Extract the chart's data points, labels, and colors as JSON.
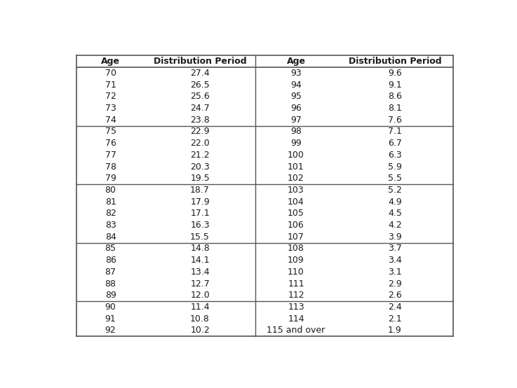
{
  "col_headers": [
    "Age",
    "Distribution Period",
    "Age",
    "Distribution Period"
  ],
  "groups": [
    {
      "left": [
        [
          "70",
          "27.4"
        ],
        [
          "71",
          "26.5"
        ],
        [
          "72",
          "25.6"
        ],
        [
          "73",
          "24.7"
        ],
        [
          "74",
          "23.8"
        ]
      ],
      "right": [
        [
          "93",
          "9.6"
        ],
        [
          "94",
          "9.1"
        ],
        [
          "95",
          "8.6"
        ],
        [
          "96",
          "8.1"
        ],
        [
          "97",
          "7.6"
        ]
      ]
    },
    {
      "left": [
        [
          "75",
          "22.9"
        ],
        [
          "76",
          "22.0"
        ],
        [
          "77",
          "21.2"
        ],
        [
          "78",
          "20.3"
        ],
        [
          "79",
          "19.5"
        ]
      ],
      "right": [
        [
          "98",
          "7.1"
        ],
        [
          "99",
          "6.7"
        ],
        [
          "100",
          "6.3"
        ],
        [
          "101",
          "5.9"
        ],
        [
          "102",
          "5.5"
        ]
      ]
    },
    {
      "left": [
        [
          "80",
          "18.7"
        ],
        [
          "81",
          "17.9"
        ],
        [
          "82",
          "17.1"
        ],
        [
          "83",
          "16.3"
        ],
        [
          "84",
          "15.5"
        ]
      ],
      "right": [
        [
          "103",
          "5.2"
        ],
        [
          "104",
          "4.9"
        ],
        [
          "105",
          "4.5"
        ],
        [
          "106",
          "4.2"
        ],
        [
          "107",
          "3.9"
        ]
      ]
    },
    {
      "left": [
        [
          "85",
          "14.8"
        ],
        [
          "86",
          "14.1"
        ],
        [
          "87",
          "13.4"
        ],
        [
          "88",
          "12.7"
        ],
        [
          "89",
          "12.0"
        ]
      ],
      "right": [
        [
          "108",
          "3.7"
        ],
        [
          "109",
          "3.4"
        ],
        [
          "110",
          "3.1"
        ],
        [
          "111",
          "2.9"
        ],
        [
          "112",
          "2.6"
        ]
      ]
    },
    {
      "left": [
        [
          "90",
          "11.4"
        ],
        [
          "91",
          "10.8"
        ],
        [
          "92",
          "10.2"
        ]
      ],
      "right": [
        [
          "113",
          "2.4"
        ],
        [
          "114",
          "2.1"
        ],
        [
          "115 and over",
          "1.9"
        ]
      ]
    }
  ],
  "header_text_color": "#1a1a1a",
  "cell_text_color": "#1a1a1a",
  "divider_color": "#555555",
  "header_font_size": 9,
  "cell_font_size": 9,
  "bg_color": "#ffffff",
  "fig_width": 7.37,
  "fig_height": 5.54,
  "dpi": 100
}
